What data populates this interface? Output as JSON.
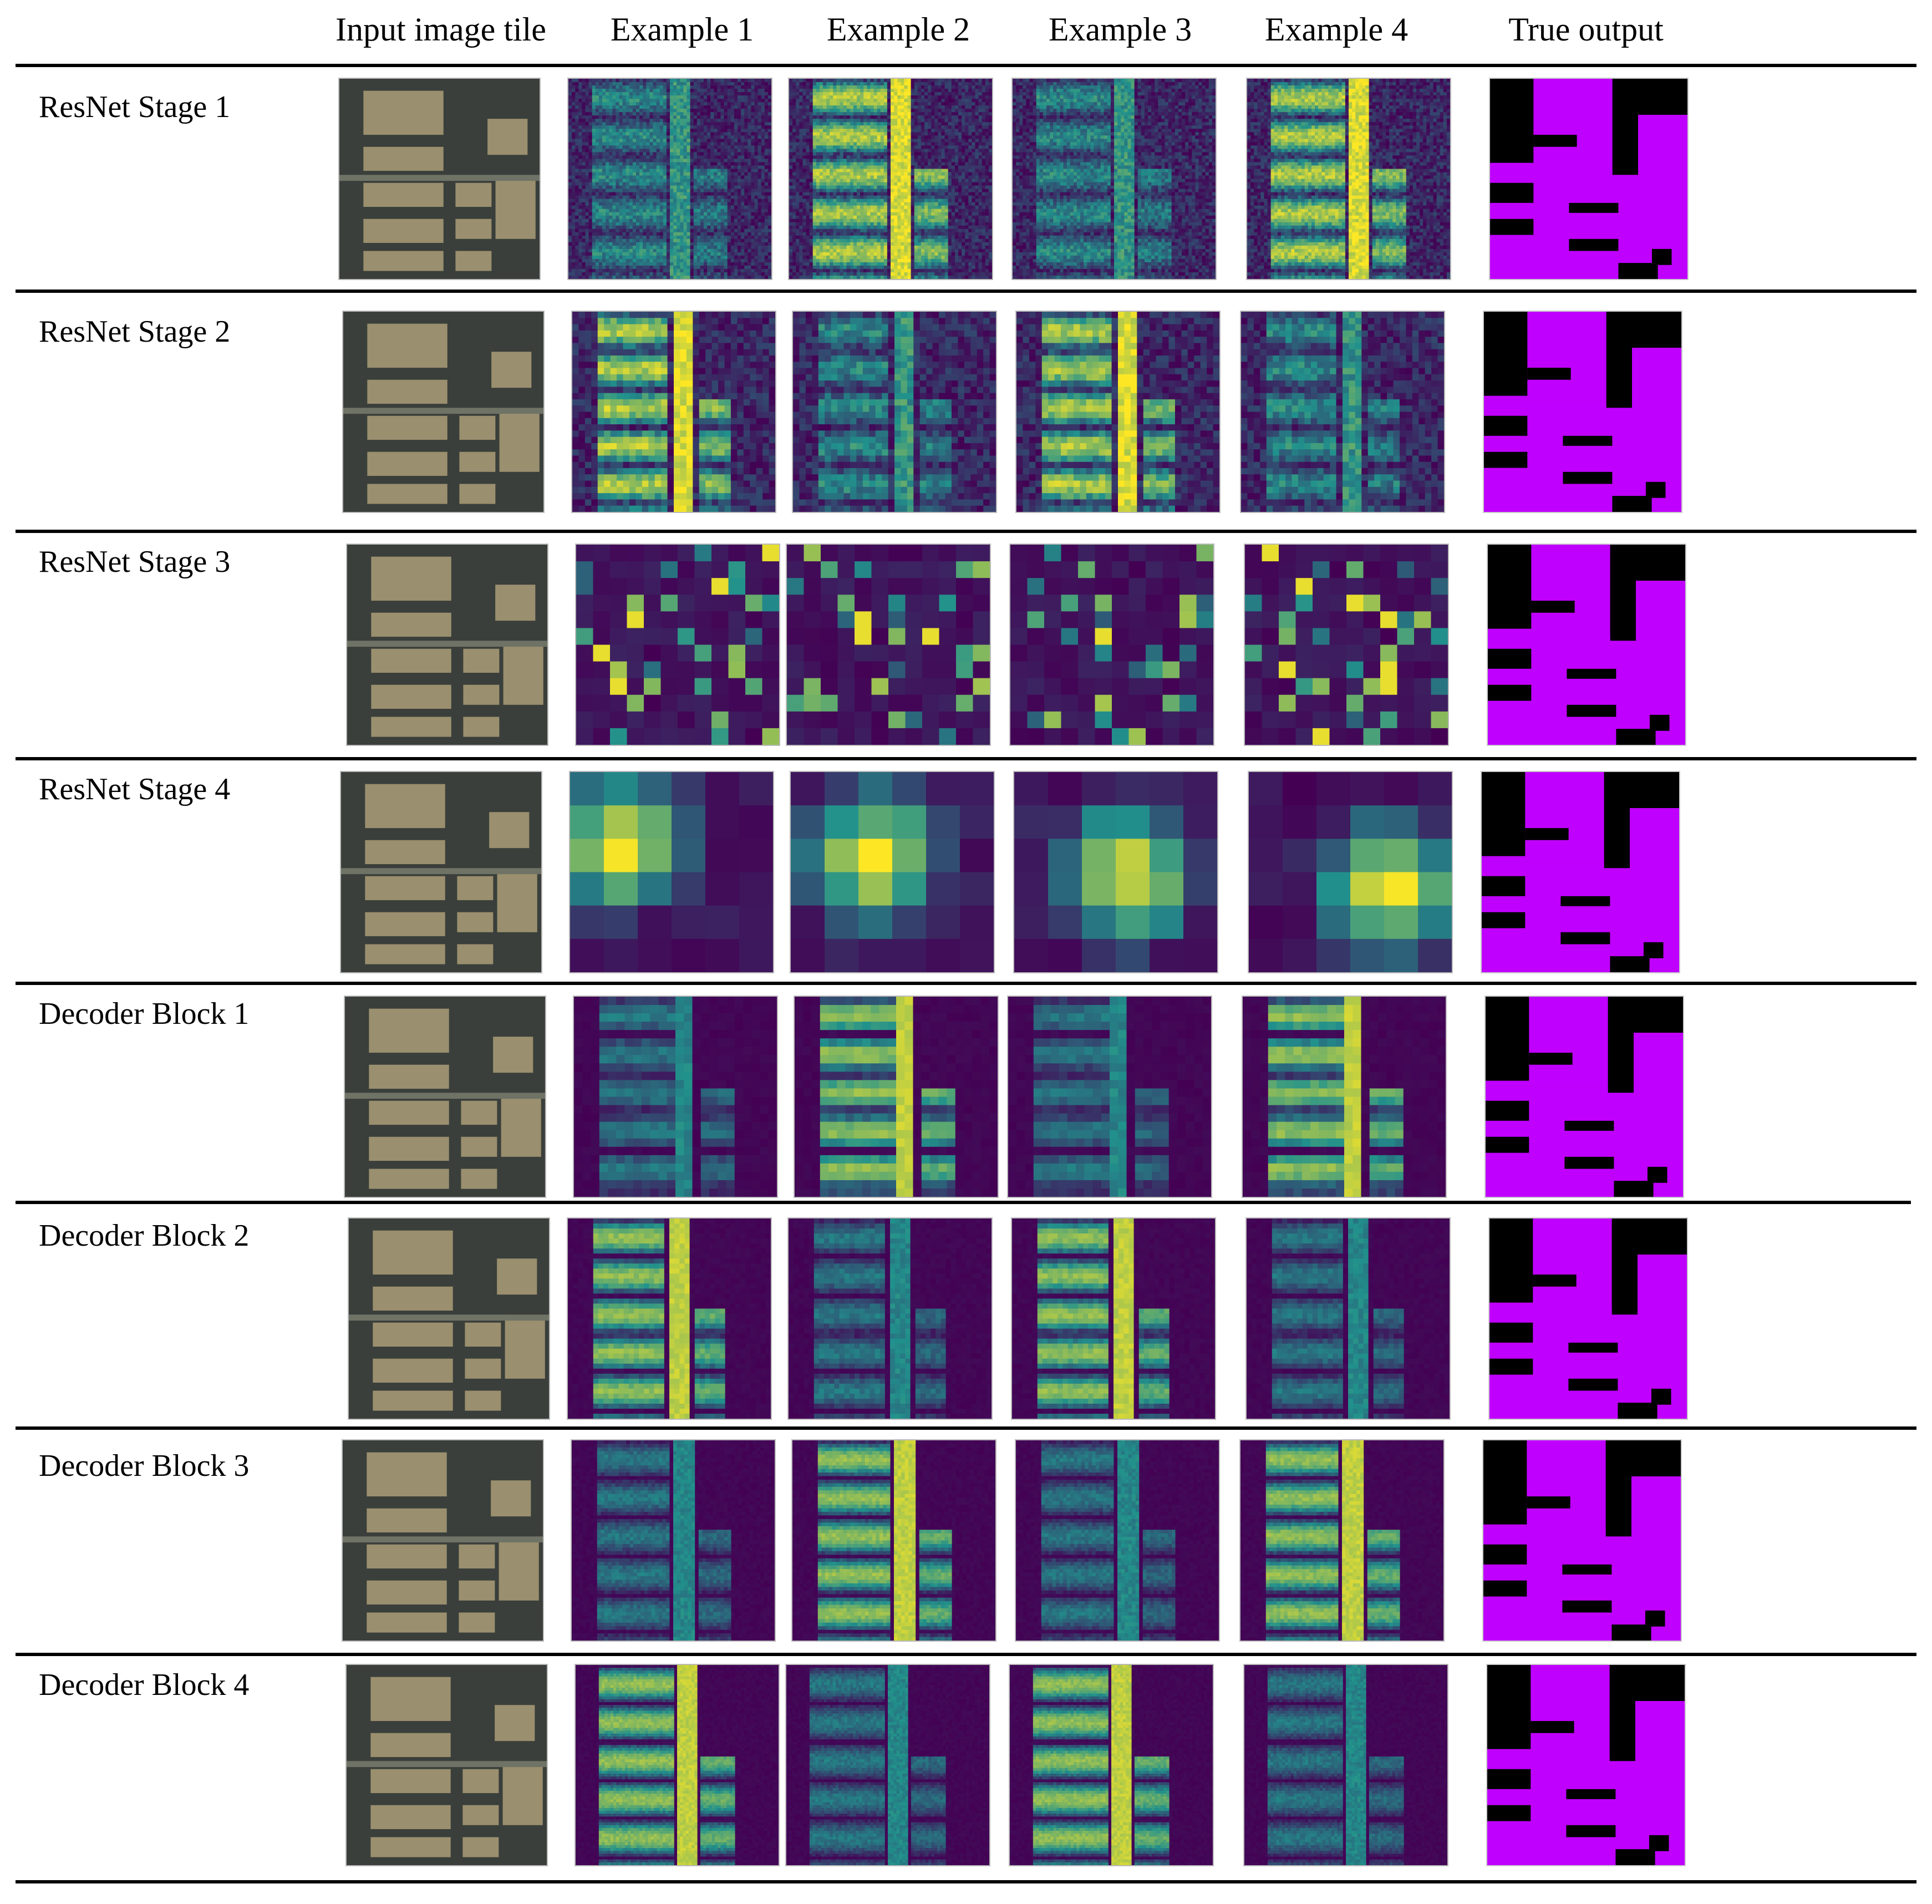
{
  "figure": {
    "column_headers": [
      "Input image tile",
      "Example 1",
      "Example 2",
      "Example 3",
      "Example 4",
      "True output"
    ],
    "row_labels": [
      "ResNet Stage 1",
      "ResNet Stage 2",
      "ResNet Stage 3",
      "ResNet Stage 4",
      "Decoder Block 1",
      "Decoder Block 2",
      "Decoder Block 3",
      "Decoder Block 4"
    ],
    "tile_types": [
      "aerial-image",
      "feature-map",
      "feature-map",
      "feature-map",
      "feature-map",
      "segmentation-mask"
    ]
  },
  "colors": {
    "viridis_low": "#440154",
    "viridis_mid": "#21918c",
    "viridis_high": "#fde725",
    "mask_foreground": "#c000ff",
    "mask_background": "#000000",
    "aerial_roof": "#9a8f6e",
    "aerial_road": "#3a3f3b"
  }
}
